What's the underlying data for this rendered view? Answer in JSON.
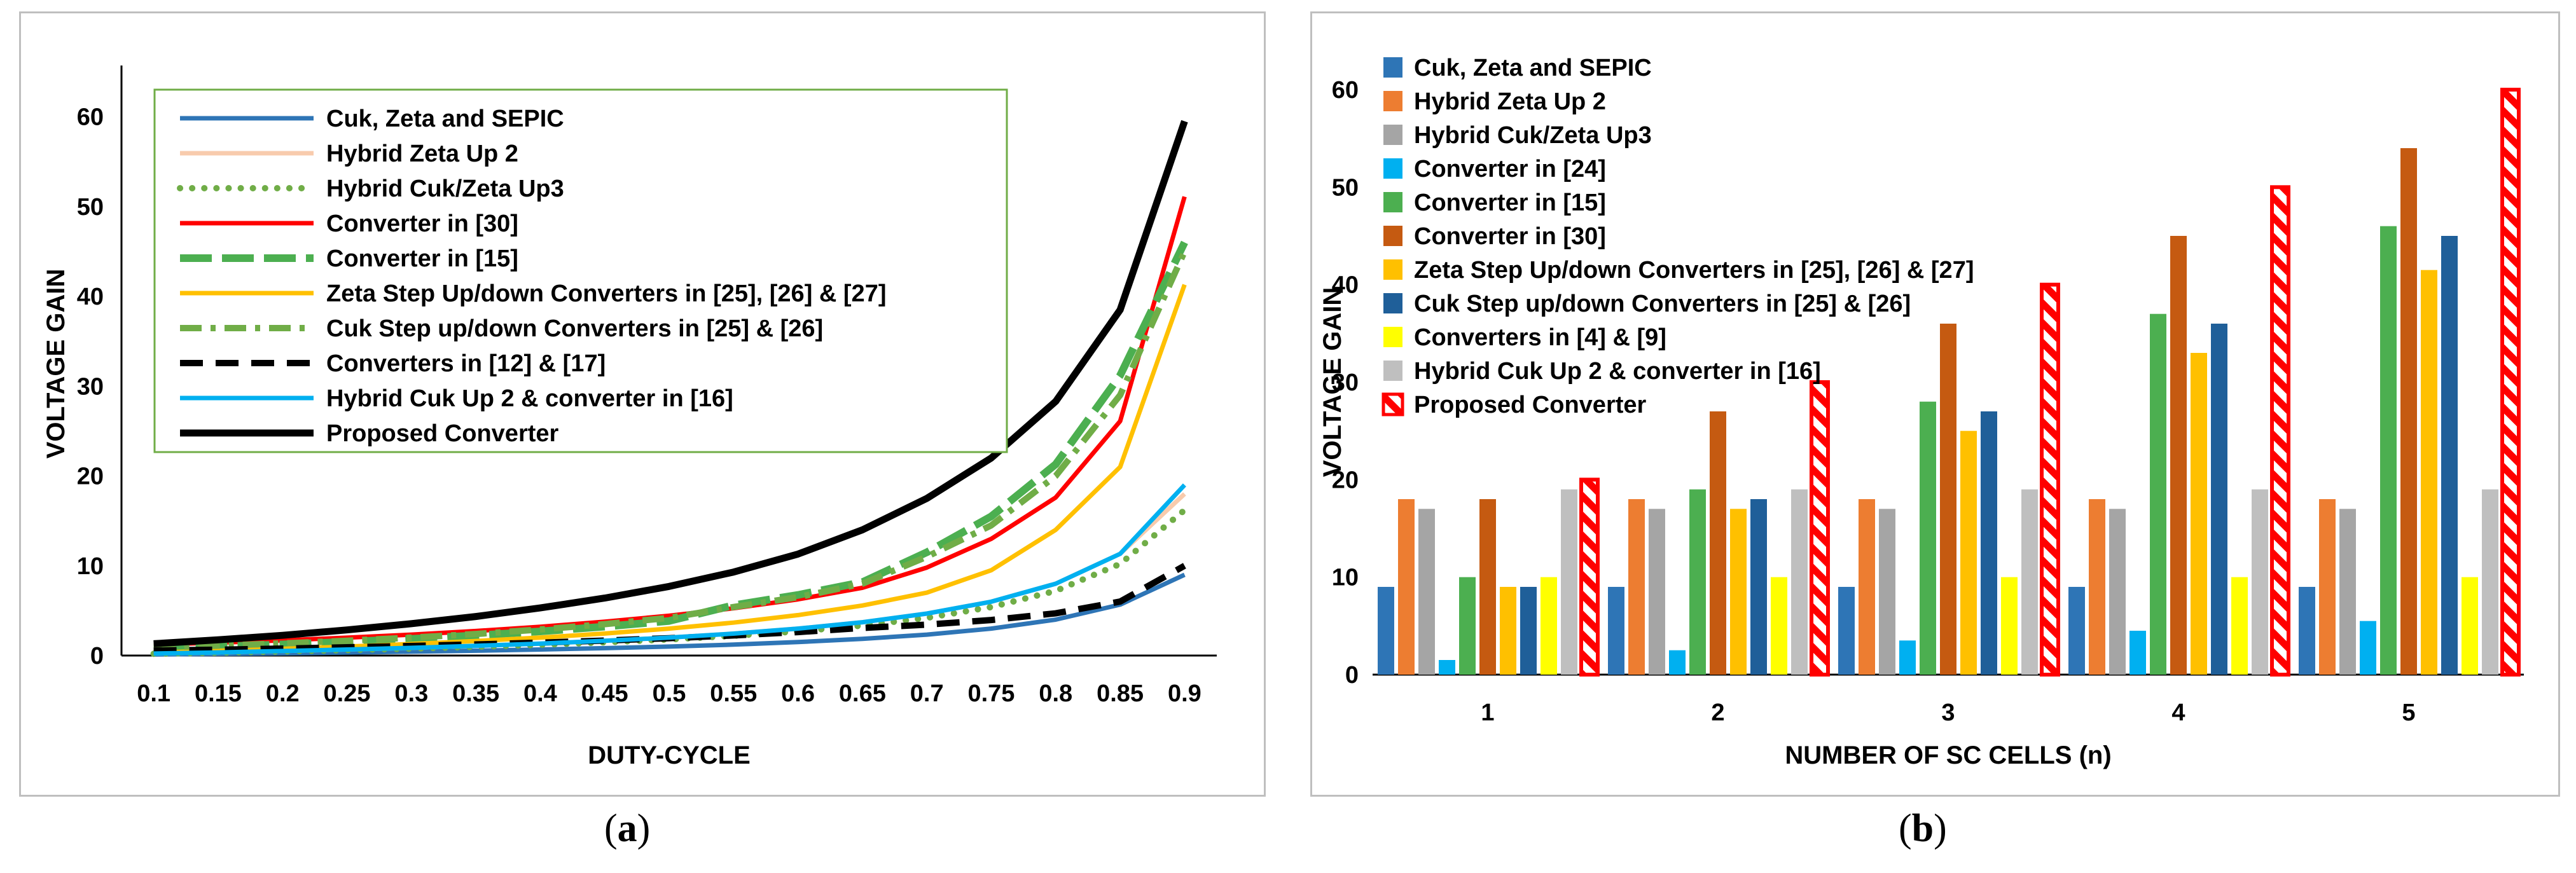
{
  "subfigure_labels": [
    "(a)",
    "(b)"
  ],
  "chart_data": [
    {
      "type": "line",
      "x": [
        0.1,
        0.15,
        0.2,
        0.25,
        0.3,
        0.35,
        0.4,
        0.45,
        0.5,
        0.55,
        0.6,
        0.65,
        0.7,
        0.75,
        0.8,
        0.85,
        0.9
      ],
      "xlabel": "DUTY-CYCLE",
      "ylabel": "VOLTAGE GAIN",
      "ylim": [
        0,
        65
      ],
      "yticks": [
        0,
        10,
        20,
        30,
        40,
        50,
        60
      ],
      "grid": false,
      "legend_position": "top-left, boxed",
      "series": [
        {
          "name": "Cuk, Zeta and SEPIC",
          "color": "#2e75b6",
          "style": "solid",
          "values": [
            0.11,
            0.18,
            0.25,
            0.33,
            0.43,
            0.54,
            0.67,
            0.82,
            1.0,
            1.22,
            1.5,
            1.86,
            2.33,
            3.0,
            4.0,
            5.67,
            9.0
          ]
        },
        {
          "name": "Hybrid Zeta Up 2",
          "color": "#f8cbad",
          "style": "solid",
          "values": [
            0.22,
            0.35,
            0.5,
            0.67,
            0.86,
            1.08,
            1.33,
            1.64,
            2.0,
            2.44,
            3.0,
            3.71,
            4.67,
            6.0,
            8.0,
            11.33,
            18.0
          ]
        },
        {
          "name": "Hybrid Cuk/Zeta Up3",
          "color": "#70ad47",
          "style": "dotted",
          "values": [
            0.2,
            0.32,
            0.45,
            0.6,
            0.77,
            0.97,
            1.2,
            1.47,
            1.8,
            2.2,
            2.7,
            3.34,
            4.2,
            5.4,
            7.2,
            10.2,
            16.2
          ]
        },
        {
          "name": "Converter in [30]",
          "color": "#ff0000",
          "style": "solid",
          "values": [
            1.22,
            1.44,
            1.69,
            1.99,
            2.33,
            2.73,
            3.21,
            3.77,
            4.44,
            5.26,
            6.26,
            7.55,
            9.8,
            13.0,
            17.6,
            26.1,
            51.1
          ]
        },
        {
          "name": "Converter in [15]",
          "color": "#4caf50",
          "style": "longdash",
          "values": [
            0.88,
            1.0,
            1.24,
            1.53,
            1.86,
            2.24,
            2.69,
            3.22,
            3.85,
            5.6,
            6.75,
            8.18,
            11.5,
            15.5,
            21.3,
            31.2,
            46.0
          ]
        },
        {
          "name": "Zeta Step Up/down Converters in [25], [26] & [27]",
          "color": "#ffc000",
          "style": "solid",
          "values": [
            0.33,
            0.53,
            0.75,
            1.0,
            1.29,
            1.62,
            2.0,
            2.45,
            3.0,
            3.67,
            4.5,
            5.57,
            7.0,
            9.5,
            14.0,
            21.0,
            41.3
          ]
        },
        {
          "name": "Cuk Step up/down Converters in [25] & [26]",
          "color": "#70ad47",
          "style": "dashdot",
          "values": [
            0.9,
            1.1,
            1.35,
            1.65,
            2.0,
            2.4,
            2.9,
            3.5,
            4.2,
            5.4,
            6.5,
            8.0,
            11.0,
            14.5,
            20.0,
            29.0,
            45.0
          ]
        },
        {
          "name": "Converters in [12] & [17]",
          "color": "#000000",
          "style": "dashed",
          "values": [
            0.56,
            0.65,
            0.78,
            0.92,
            1.07,
            1.24,
            1.44,
            1.67,
            1.93,
            2.24,
            2.61,
            3.07,
            3.44,
            3.96,
            4.7,
            6.01,
            10.0
          ]
        },
        {
          "name": "Hybrid Cuk Up 2 & converter in [16]",
          "color": "#00b0f0",
          "style": "solid",
          "values": [
            0.22,
            0.35,
            0.5,
            0.67,
            0.86,
            1.08,
            1.33,
            1.64,
            2.0,
            2.44,
            3.0,
            3.71,
            4.67,
            6.0,
            8.0,
            11.33,
            19.0
          ]
        },
        {
          "name": "Proposed Converter",
          "color": "#000000",
          "style": "solid-thick",
          "values": [
            1.32,
            1.75,
            2.25,
            2.85,
            3.55,
            4.35,
            5.3,
            6.4,
            7.7,
            9.3,
            11.3,
            14.0,
            17.5,
            22.0,
            28.3,
            38.5,
            59.5
          ]
        }
      ]
    },
    {
      "type": "bar",
      "categories": [
        "1",
        "2",
        "3",
        "4",
        "5"
      ],
      "xlabel": "NUMBER OF SC CELLS (n)",
      "ylabel": "VOLTAGE GAIN",
      "ylim": [
        0,
        60
      ],
      "yticks": [
        0,
        10,
        20,
        30,
        40,
        50,
        60
      ],
      "grid": false,
      "legend_position": "top-left",
      "series": [
        {
          "name": "Cuk, Zeta and SEPIC",
          "color": "#2e75b6",
          "values": [
            9,
            9,
            9,
            9,
            9
          ]
        },
        {
          "name": "Hybrid Zeta Up 2",
          "color": "#ed7d31",
          "values": [
            18,
            18,
            18,
            18,
            18
          ]
        },
        {
          "name": "Hybrid Cuk/Zeta Up3",
          "color": "#a5a5a5",
          "values": [
            17,
            17,
            17,
            17,
            17
          ]
        },
        {
          "name": "Converter in [24]",
          "color": "#00b0f0",
          "values": [
            1.5,
            2.5,
            3.5,
            4.5,
            5.5
          ]
        },
        {
          "name": "Converter in [15]",
          "color": "#4caf50",
          "values": [
            10,
            19,
            28,
            37,
            46
          ]
        },
        {
          "name": "Converter in [30]",
          "color": "#c55a11",
          "values": [
            18,
            27,
            36,
            45,
            54
          ]
        },
        {
          "name": "Zeta Step Up/down Converters in [25], [26] & [27]",
          "color": "#ffc000",
          "values": [
            9,
            17,
            25,
            33,
            41.5
          ]
        },
        {
          "name": "Cuk Step up/down Converters in [25] & [26]",
          "color": "#1f5f99",
          "values": [
            9,
            18,
            27,
            36,
            45
          ]
        },
        {
          "name": "Converters in [4] & [9]",
          "color": "#ffff00",
          "values": [
            10,
            10,
            10,
            10,
            10
          ]
        },
        {
          "name": "Hybrid Cuk Up 2 & converter in [16]",
          "color": "#bfbfbf",
          "values": [
            19,
            19,
            19,
            19,
            19
          ]
        },
        {
          "name": "Proposed Converter",
          "color": "#ff0000",
          "pattern": "hatched",
          "values": [
            20,
            30,
            40,
            50,
            60
          ]
        }
      ]
    }
  ]
}
